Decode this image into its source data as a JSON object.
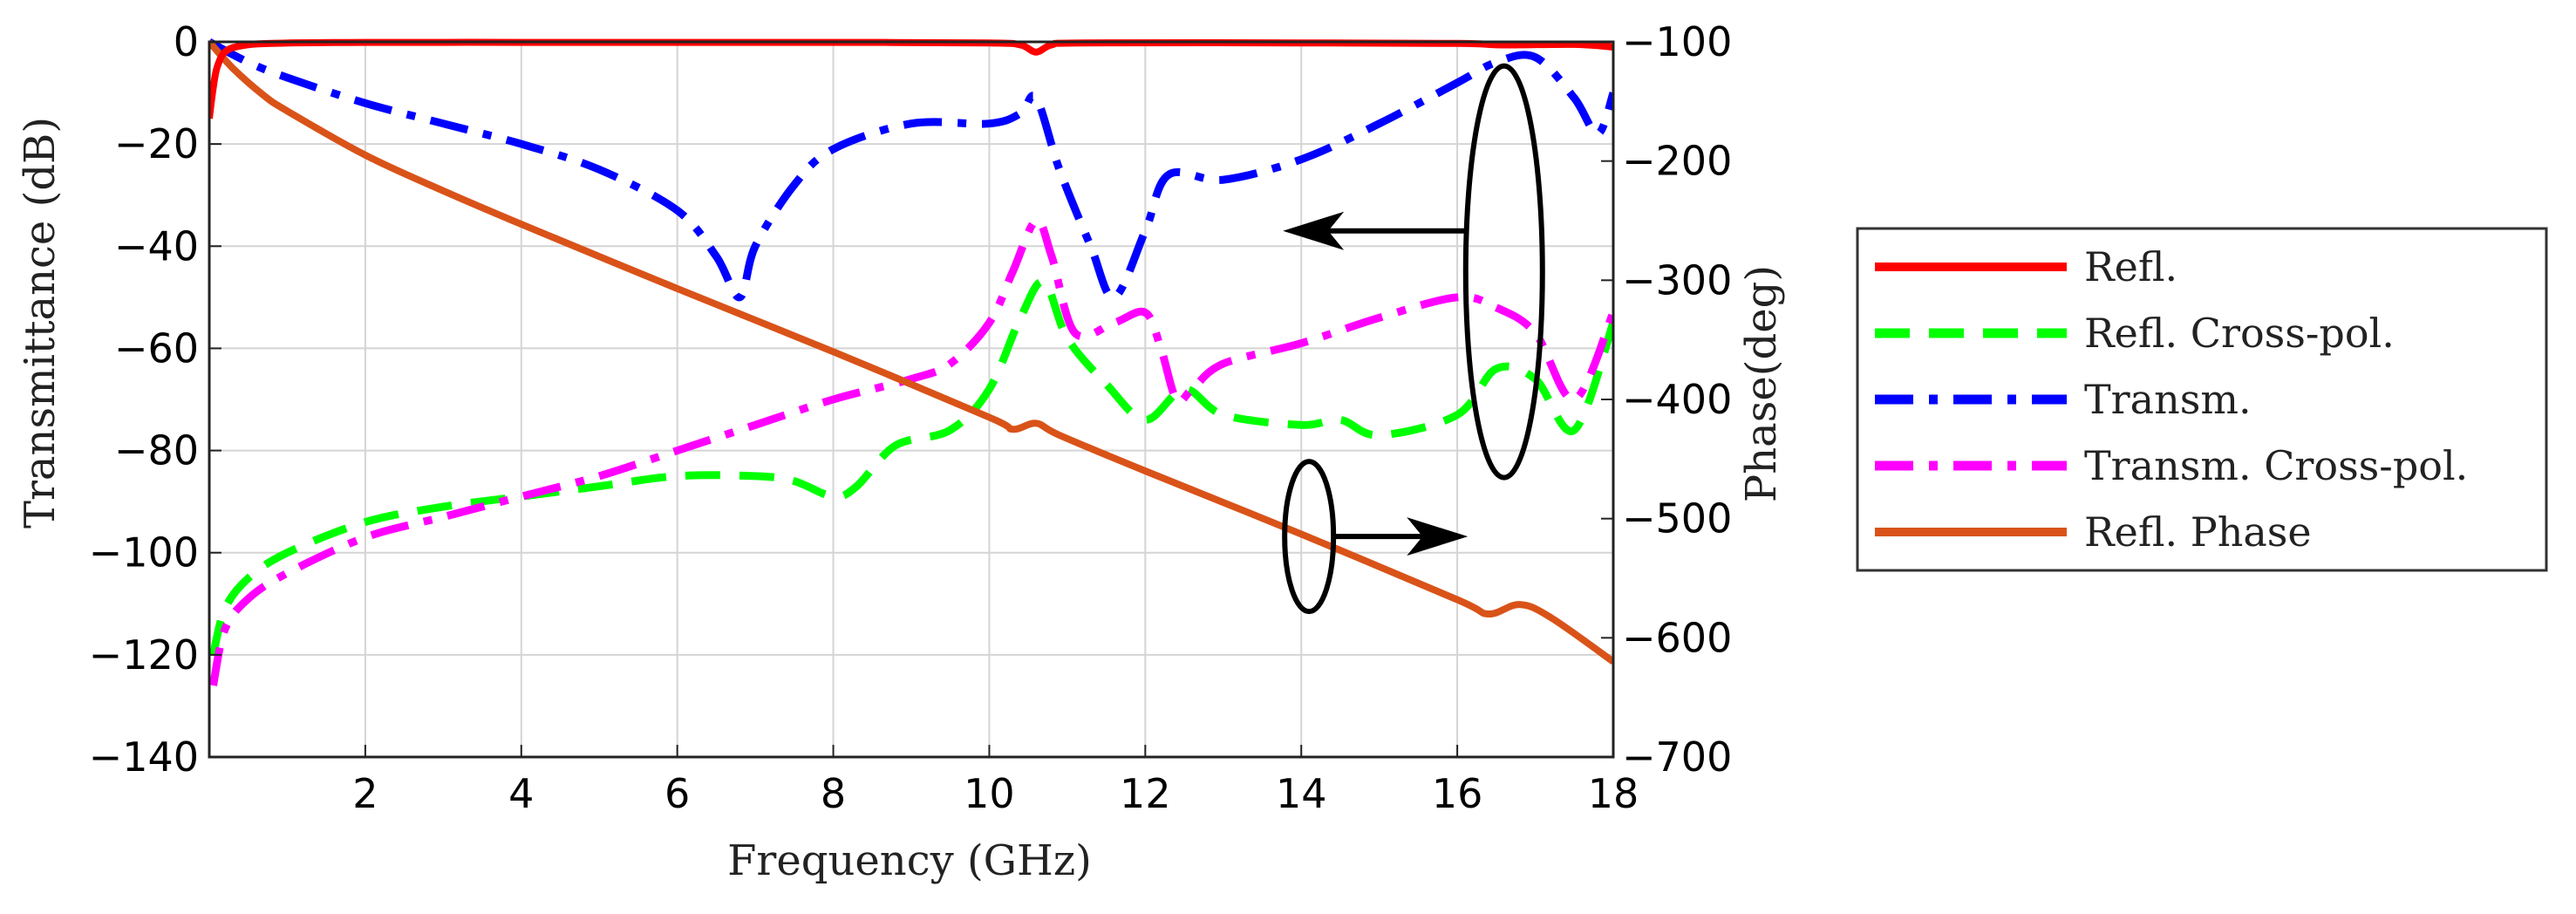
{
  "chart_data": {
    "type": "line",
    "xlabel": "Frequency (GHz)",
    "ylabel": "Transmittance (dB)",
    "y2label": "Phase(deg)",
    "xlim": [
      0,
      18
    ],
    "ylim": [
      -140,
      0
    ],
    "y2lim": [
      -700,
      -100
    ],
    "xticks": [
      2,
      4,
      6,
      8,
      10,
      12,
      14,
      16,
      18
    ],
    "xtick_labels": [
      "2",
      "4",
      "6",
      "8",
      "10",
      "12",
      "14",
      "16",
      "18"
    ],
    "yticks": [
      0,
      -20,
      -40,
      -60,
      -80,
      -100,
      -120,
      -140
    ],
    "ytick_labels": [
      "0",
      "−20",
      "−40",
      "−60",
      "−80",
      "−100",
      "−120",
      "−140"
    ],
    "y2ticks": [
      -100,
      -200,
      -300,
      -400,
      -500,
      -600,
      -700
    ],
    "y2tick_labels": [
      "−100",
      "−200",
      "−300",
      "−400",
      "−500",
      "−600",
      "−700"
    ],
    "grid": true,
    "legend_position": "outside-right",
    "series": [
      {
        "name": "Refl.",
        "axis": "left",
        "color": "#ff0000",
        "style": "solid",
        "x": [
          0,
          0.05,
          0.1,
          0.2,
          0.4,
          0.8,
          2,
          4,
          6,
          8,
          10,
          10.4,
          10.6,
          10.8,
          11.2,
          14,
          16,
          16.6,
          17.5,
          18
        ],
        "y": [
          -15,
          -9,
          -5,
          -2,
          -0.8,
          -0.3,
          -0.1,
          -0.1,
          -0.1,
          -0.1,
          -0.2,
          -0.6,
          -2,
          -0.6,
          -0.2,
          -0.2,
          -0.3,
          -0.6,
          -0.5,
          -1
        ]
      },
      {
        "name": "Refl. Cross-pol.",
        "axis": "left",
        "color": "#00ff00",
        "style": "dashed",
        "x": [
          0.05,
          0.2,
          0.5,
          1,
          2,
          3,
          4,
          5,
          6,
          7,
          7.5,
          8,
          8.3,
          8.8,
          9.5,
          10,
          10.4,
          10.7,
          11.0,
          11.5,
          12.0,
          12.5,
          13,
          14,
          14.5,
          15,
          16,
          16.5,
          17,
          17.5,
          18
        ],
        "y": [
          -120,
          -111,
          -105,
          -100,
          -94,
          -91,
          -89,
          -87,
          -85,
          -85,
          -86,
          -89,
          -87,
          -79,
          -76,
          -68,
          -54,
          -47,
          -58,
          -67,
          -74,
          -68,
          -73,
          -75,
          -74,
          -77,
          -73,
          -64,
          -66,
          -76,
          -55
        ]
      },
      {
        "name": "Transm.",
        "axis": "left",
        "color": "#0000ff",
        "style": "dashdot",
        "x": [
          0,
          0.5,
          1,
          2,
          3,
          4,
          5,
          6,
          6.5,
          6.8,
          7.0,
          7.5,
          8,
          9,
          10,
          10.4,
          10.6,
          10.9,
          11.3,
          11.6,
          12.0,
          12.3,
          13,
          14,
          15,
          16,
          16.5,
          17,
          17.5,
          17.8,
          18
        ],
        "y": [
          0,
          -4,
          -7,
          -12,
          -16,
          -20,
          -25,
          -33,
          -42,
          -50,
          -40,
          -28,
          -21,
          -16,
          -16,
          -14,
          -11,
          -25,
          -40,
          -50,
          -37,
          -26,
          -27,
          -23,
          -16,
          -8,
          -4,
          -3,
          -11,
          -18,
          -10
        ]
      },
      {
        "name": "Transm. Cross-pol.",
        "axis": "left",
        "color": "#ff00ff",
        "style": "dashdot",
        "x": [
          0.05,
          0.2,
          0.5,
          1,
          2,
          3,
          4,
          5,
          6,
          7,
          8,
          9,
          9.5,
          10,
          10.3,
          10.6,
          10.8,
          11.1,
          11.6,
          12.0,
          12.2,
          12.4,
          12.6,
          13,
          14,
          15,
          16,
          16.5,
          17,
          17.5,
          18
        ],
        "y": [
          -126,
          -115,
          -109,
          -104,
          -97,
          -93,
          -89,
          -85,
          -80,
          -75,
          -70,
          -66,
          -63,
          -55,
          -45,
          -35,
          -42,
          -57,
          -55,
          -53,
          -60,
          -70,
          -68,
          -63,
          -59,
          -54,
          -50,
          -52,
          -57,
          -70,
          -53
        ]
      },
      {
        "name": "Refl. Phase",
        "axis": "right",
        "color": "#d95319",
        "style": "solid",
        "x": [
          0,
          0.3,
          0.7,
          1,
          2,
          3,
          4,
          6,
          8,
          10,
          10.3,
          10.6,
          10.9,
          12,
          14,
          16,
          16.4,
          16.8,
          17.2,
          18
        ],
        "y": [
          -100,
          -122,
          -145,
          -158,
          -195,
          -225,
          -253,
          -307,
          -360,
          -415,
          -425,
          -420,
          -430,
          -460,
          -513,
          -568,
          -580,
          -572,
          -583,
          -620
        ]
      }
    ],
    "annotations": [
      {
        "type": "ellipse-arrow",
        "target_axis": "left",
        "direction": "left"
      },
      {
        "type": "ellipse-arrow",
        "target_axis": "right",
        "direction": "right"
      }
    ]
  }
}
